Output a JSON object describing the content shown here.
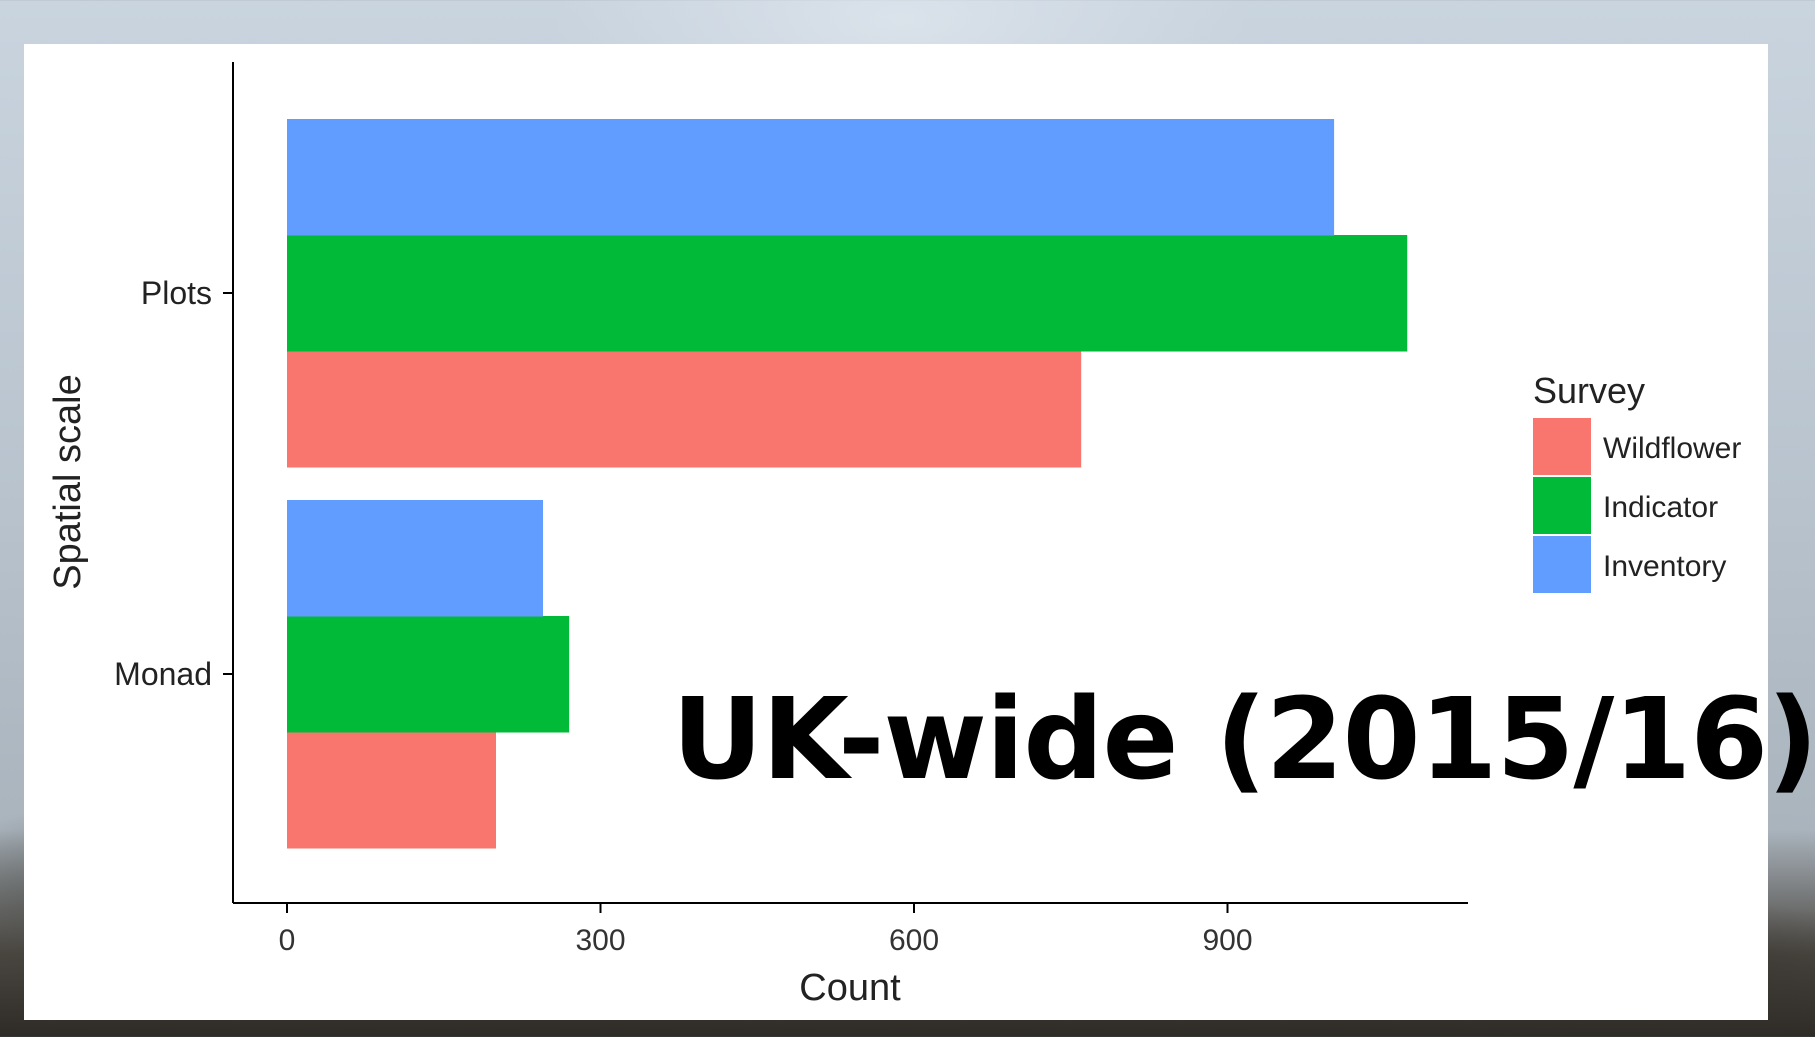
{
  "overlay_title": "UK-wide (2015/16)",
  "chart_data": {
    "type": "bar",
    "orientation": "horizontal",
    "title": "",
    "xlabel": "Count",
    "ylabel": "Spatial scale",
    "categories": [
      "Monad",
      "Plots"
    ],
    "xlim": [
      0,
      1130
    ],
    "x_ticks": [
      0,
      300,
      600,
      900
    ],
    "grid": false,
    "legend": {
      "title": "Survey",
      "placement": "right"
    },
    "series": [
      {
        "name": "Wildflower",
        "color": "#F8766D",
        "values": [
          200,
          760
        ]
      },
      {
        "name": "Indicator",
        "color": "#00BA38",
        "values": [
          270,
          1072
        ]
      },
      {
        "name": "Inventory",
        "color": "#619CFF",
        "values": [
          245,
          1002
        ]
      }
    ]
  }
}
